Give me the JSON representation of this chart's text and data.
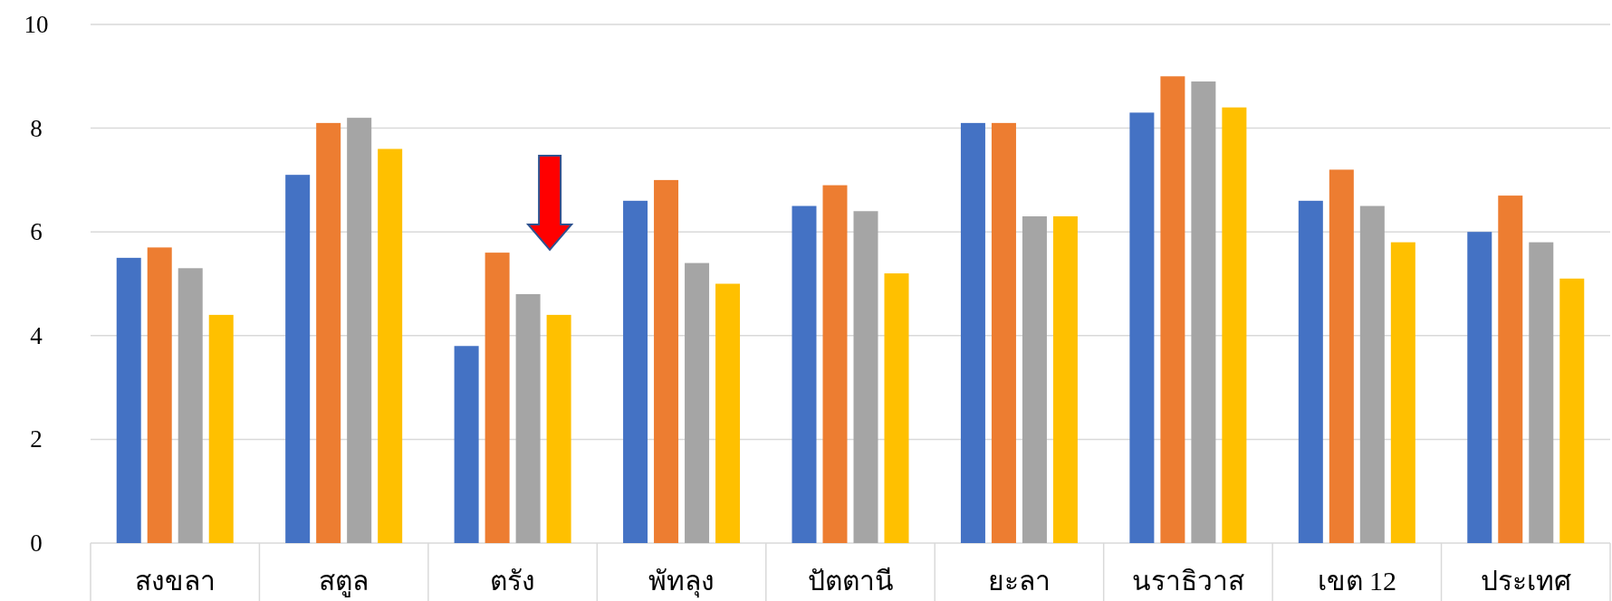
{
  "chart_data": {
    "type": "bar",
    "categories": [
      "สงขลา",
      "สตูล",
      "ตรัง",
      "พัทลุง",
      "ปัตตานี",
      "ยะลา",
      "นราธิวาส",
      "เขต 12",
      "ประเทศ"
    ],
    "series": [
      {
        "color": "#4472c4",
        "values": [
          5.5,
          7.1,
          3.8,
          6.6,
          6.5,
          8.1,
          8.3,
          6.6,
          6.0
        ]
      },
      {
        "color": "#ed7d31",
        "values": [
          5.7,
          8.1,
          5.6,
          7.0,
          6.9,
          8.1,
          9.0,
          7.2,
          6.7
        ]
      },
      {
        "color": "#a5a5a5",
        "values": [
          5.3,
          8.2,
          4.8,
          5.4,
          6.4,
          6.3,
          8.9,
          6.5,
          5.8
        ]
      },
      {
        "color": "#ffc000",
        "values": [
          4.4,
          7.6,
          4.4,
          5.0,
          5.2,
          6.3,
          8.4,
          5.8,
          5.1
        ]
      }
    ],
    "ylim": [
      0,
      10
    ],
    "yticks": [
      0,
      2,
      4,
      6,
      8,
      10
    ],
    "grid": "y"
  }
}
